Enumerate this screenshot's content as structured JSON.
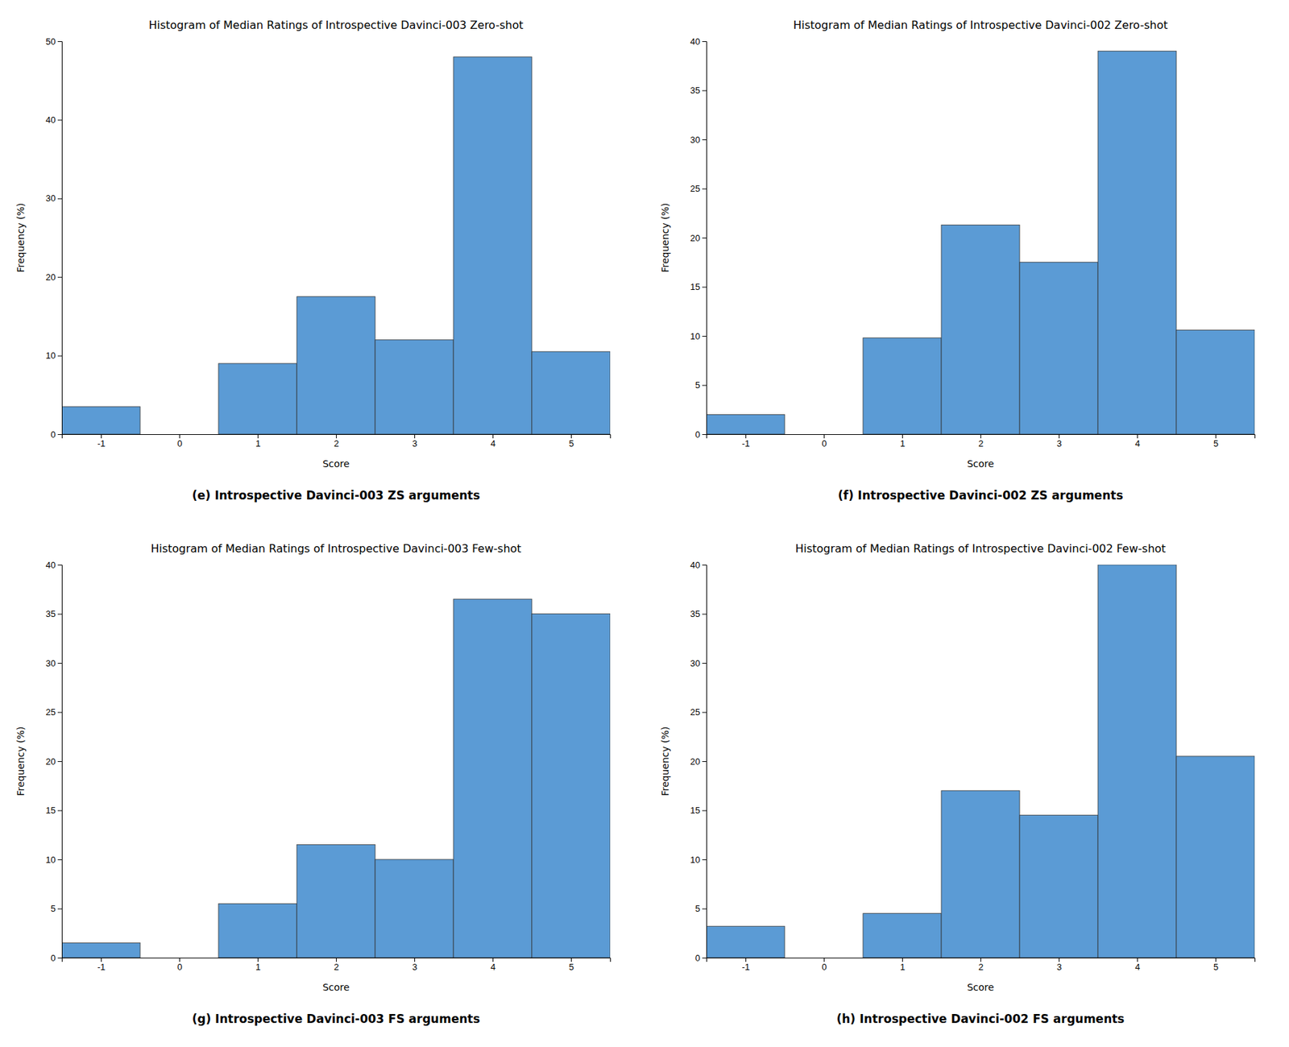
{
  "chart_data": [
    {
      "type": "bar",
      "title": "Histogram of Median Ratings of Introspective Davinci-003 Zero-shot",
      "caption": "(e) Introspective Davinci-003 ZS arguments",
      "x_label": "Score",
      "y_label": "Frequency (%)",
      "x": [
        -1,
        0,
        1,
        2,
        3,
        4,
        5
      ],
      "values": [
        3.5,
        0,
        9.0,
        17.5,
        12.0,
        48.0,
        10.5
      ],
      "color": "#5B9BD5",
      "xlim": [
        -1.5,
        5.5
      ],
      "xticks": [
        -1,
        0,
        1,
        2,
        3,
        4,
        5
      ],
      "ylim": [
        0,
        50
      ],
      "yticks": [
        0,
        10,
        20,
        30,
        40,
        50
      ],
      "grid": false
    },
    {
      "type": "bar",
      "title": "Histogram of Median Ratings of Introspective Davinci-002 Zero-shot",
      "caption": "(f) Introspective Davinci-002 ZS arguments",
      "x_label": "Score",
      "y_label": "Frequency (%)",
      "x": [
        -1,
        0,
        1,
        2,
        3,
        4,
        5
      ],
      "values": [
        2.0,
        0,
        9.8,
        21.3,
        17.5,
        39.0,
        10.6
      ],
      "color": "#5B9BD5",
      "xlim": [
        -1.5,
        5.5
      ],
      "xticks": [
        -1,
        0,
        1,
        2,
        3,
        4,
        5
      ],
      "ylim": [
        0,
        40
      ],
      "yticks": [
        0,
        5,
        10,
        15,
        20,
        25,
        30,
        35,
        40
      ],
      "grid": false
    },
    {
      "type": "bar",
      "title": "Histogram of Median Ratings of Introspective Davinci-003 Few-shot",
      "caption": "(g) Introspective Davinci-003 FS arguments",
      "x_label": "Score",
      "y_label": "Frequency (%)",
      "x": [
        -1,
        0,
        1,
        2,
        3,
        4,
        5
      ],
      "values": [
        1.5,
        0,
        5.5,
        11.5,
        10.0,
        36.5,
        35.0
      ],
      "color": "#5B9BD5",
      "xlim": [
        -1.5,
        5.5
      ],
      "xticks": [
        -1,
        0,
        1,
        2,
        3,
        4,
        5
      ],
      "ylim": [
        0,
        40
      ],
      "yticks": [
        0,
        5,
        10,
        15,
        20,
        25,
        30,
        35,
        40
      ],
      "grid": false
    },
    {
      "type": "bar",
      "title": "Histogram of Median Ratings of Introspective Davinci-002 Few-shot",
      "caption": "(h) Introspective Davinci-002 FS arguments",
      "x_label": "Score",
      "y_label": "Frequency (%)",
      "x": [
        -1,
        0,
        1,
        2,
        3,
        4,
        5
      ],
      "values": [
        3.2,
        0,
        4.5,
        17.0,
        14.5,
        40.0,
        20.5
      ],
      "color": "#5B9BD5",
      "xlim": [
        -1.5,
        5.5
      ],
      "xticks": [
        -1,
        0,
        1,
        2,
        3,
        4,
        5
      ],
      "ylim": [
        0,
        40
      ],
      "yticks": [
        0,
        5,
        10,
        15,
        20,
        25,
        30,
        35,
        40
      ],
      "grid": false
    }
  ]
}
